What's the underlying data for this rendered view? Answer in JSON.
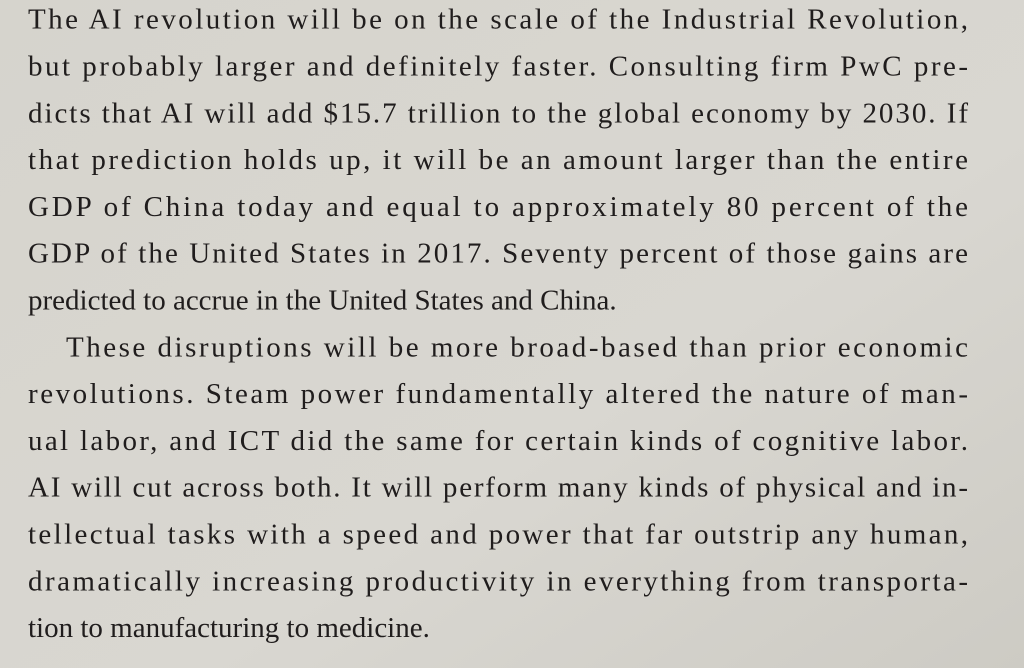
{
  "paragraphs": [
    {
      "lines": [
        "The AI revolution will be on the scale of the Industrial Revolution,",
        "but probably larger and definitely faster. Consulting firm PwC pre-",
        "dicts that AI will add $15.7 trillion to the global economy by 2030. If",
        "that prediction holds up, it will be an amount larger than the entire",
        "GDP of China today and equal to approximately 80 percent of the",
        "GDP of the United States in 2017. Seventy percent of those gains are",
        "predicted to accrue in the United States and China."
      ]
    },
    {
      "lines": [
        "These disruptions will be more broad-based than prior economic",
        "revolutions. Steam power fundamentally altered the nature of man-",
        "ual labor, and ICT did the same for certain kinds of cognitive labor.",
        "AI will cut across both. It will perform many kinds of physical and in-",
        "tellectual tasks with a speed and power that far outstrip any human,",
        "dramatically increasing productivity in everything from transporta-",
        "tion to manufacturing to medicine."
      ]
    }
  ]
}
